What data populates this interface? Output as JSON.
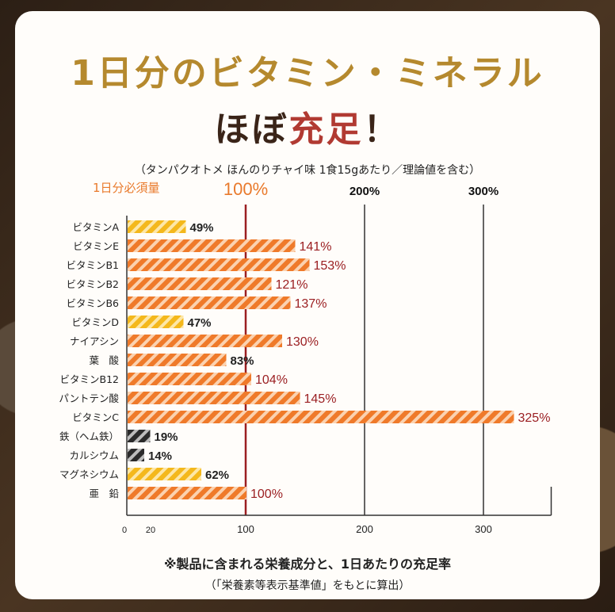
{
  "title": {
    "line1": "1日分のビタミン・ミネラル",
    "line2_prefix": "ほぼ",
    "line2_highlight": "充足",
    "line2_suffix": "！"
  },
  "subtitle": "（タンパクオトメ ほんのりチャイ味 1食15gあたり／理論値を含む）",
  "footnote": "※製品に含まれる栄養成分と、1日あたりの充足率",
  "footnote_sub": "（「栄養素等表示基準値」をもとに算出）",
  "colors": {
    "orange": "#ef7a2a",
    "yellow": "#f4b81c",
    "black": "#2b2b2b",
    "red_line": "#9b1f22",
    "label_red": "#9b1f22",
    "accent_orange": "#e97a2c"
  },
  "chart_data": {
    "type": "bar",
    "orientation": "horizontal",
    "header_label": "1日分必須量",
    "ref_labels": [
      {
        "value": 100,
        "text": "100%"
      },
      {
        "value": 200,
        "text": "200%"
      },
      {
        "value": 300,
        "text": "300%"
      }
    ],
    "xlim": [
      0,
      350
    ],
    "x_ticks": [
      {
        "value": 0,
        "text": "0"
      },
      {
        "value": 20,
        "text": "20"
      },
      {
        "value": 100,
        "text": "100"
      },
      {
        "value": 200,
        "text": "200"
      },
      {
        "value": 300,
        "text": "300"
      }
    ],
    "categories": [
      "ビタミンA",
      "ビタミンE",
      "ビタミンB1",
      "ビタミンB2",
      "ビタミンB6",
      "ビタミンD",
      "ナイアシン",
      "葉　酸",
      "ビタミンB12",
      "パントテン酸",
      "ビタミンC",
      "鉄（ヘム鉄）",
      "カルシウム",
      "マグネシウム",
      "亜　鉛"
    ],
    "values": [
      49,
      141,
      153,
      121,
      137,
      47,
      130,
      83,
      104,
      145,
      325,
      19,
      14,
      62,
      100
    ],
    "value_labels": [
      "49%",
      "141%",
      "153%",
      "121%",
      "137%",
      "47%",
      "130%",
      "83%",
      "104%",
      "145%",
      "325%",
      "19%",
      "14%",
      "62%",
      "100%"
    ],
    "bar_colors": [
      "yellow",
      "orange",
      "orange",
      "orange",
      "orange",
      "yellow",
      "orange",
      "orange",
      "orange",
      "orange",
      "orange",
      "black",
      "black",
      "yellow",
      "orange"
    ]
  }
}
